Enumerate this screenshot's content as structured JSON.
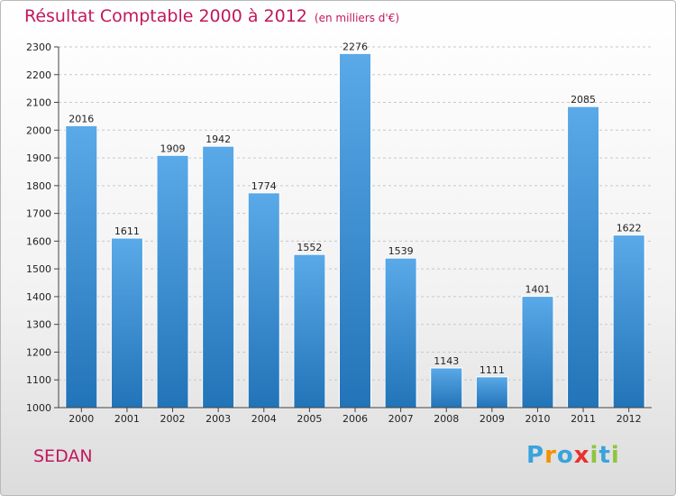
{
  "chart_data": {
    "type": "bar",
    "title": "Résultat Comptable 2000 à 2012",
    "subtitle": "(en milliers d'€)",
    "categories": [
      "2000",
      "2001",
      "2002",
      "2003",
      "2004",
      "2005",
      "2006",
      "2007",
      "2008",
      "2009",
      "2010",
      "2011",
      "2012"
    ],
    "values": [
      2016,
      1611,
      1909,
      1942,
      1774,
      1552,
      2276,
      1539,
      1143,
      1111,
      1401,
      2085,
      1622
    ],
    "ylim": [
      1000,
      2300
    ],
    "yticks": [
      1000,
      1100,
      1200,
      1300,
      1400,
      1500,
      1600,
      1700,
      1800,
      1900,
      2000,
      2100,
      2200,
      2300
    ],
    "xlabel": "",
    "ylabel": "",
    "grid": true,
    "bar_color_top": "#5aa9e8",
    "bar_color_bottom": "#2274b8"
  },
  "place": "SEDAN",
  "logo": {
    "letters": [
      "P",
      "r",
      "o",
      "x",
      "i",
      "t",
      "i"
    ],
    "colors": [
      "#3aa3dc",
      "#f39200",
      "#3aa3dc",
      "#e8322c",
      "#8dc63f",
      "#3aa3dc",
      "#8dc63f"
    ]
  },
  "colors": {
    "accent": "#c2185b",
    "axis": "#444444",
    "grid": "#c8c8c8"
  }
}
